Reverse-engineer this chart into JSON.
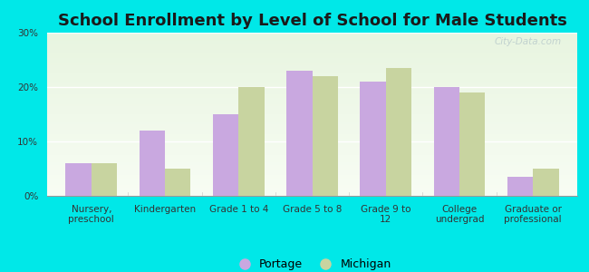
{
  "title": "School Enrollment by Level of School for Male Students",
  "categories": [
    "Nursery,\npreschool",
    "Kindergarten",
    "Grade 1 to 4",
    "Grade 5 to 8",
    "Grade 9 to\n12",
    "College\nundergrad",
    "Graduate or\nprofessional"
  ],
  "portage": [
    6.0,
    12.0,
    15.0,
    23.0,
    21.0,
    20.0,
    3.5
  ],
  "michigan": [
    6.0,
    5.0,
    20.0,
    22.0,
    23.5,
    19.0,
    5.0
  ],
  "portage_color": "#c9a8e0",
  "michigan_color": "#c8d4a0",
  "background_color": "#00e8e8",
  "plot_bg_color": "#e8f5e0",
  "yticks": [
    0,
    10,
    20,
    30
  ],
  "ylim": [
    0,
    30
  ],
  "bar_width": 0.35,
  "legend_labels": [
    "Portage",
    "Michigan"
  ],
  "title_fontsize": 13,
  "watermark": "City-Data.com"
}
